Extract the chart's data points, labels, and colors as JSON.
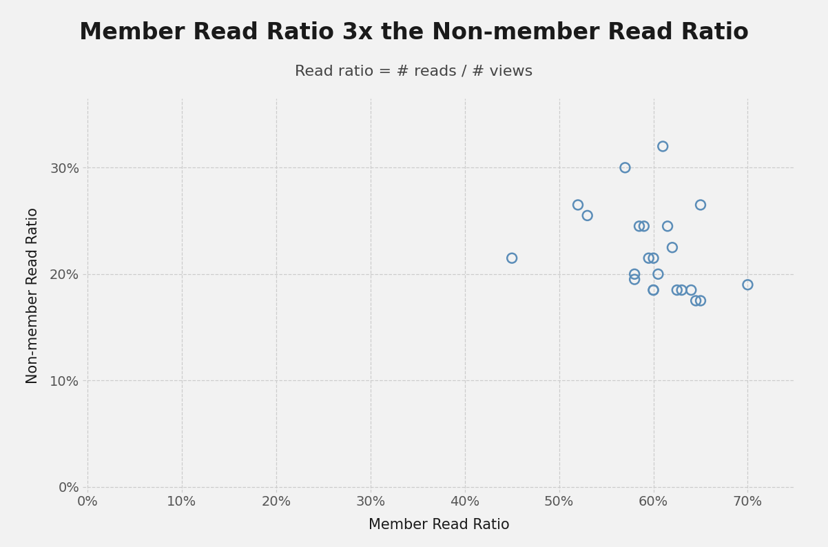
{
  "title": "Member Read Ratio 3x the Non-member Read Ratio",
  "subtitle": "Read ratio = # reads / # views",
  "xlabel": "Member Read Ratio",
  "ylabel": "Non-member Read Ratio",
  "x_data": [
    0.45,
    0.52,
    0.53,
    0.57,
    0.58,
    0.58,
    0.585,
    0.59,
    0.595,
    0.6,
    0.6,
    0.6,
    0.605,
    0.61,
    0.615,
    0.62,
    0.625,
    0.63,
    0.64,
    0.645,
    0.65,
    0.65,
    0.7
  ],
  "y_data": [
    0.215,
    0.265,
    0.255,
    0.3,
    0.195,
    0.2,
    0.245,
    0.245,
    0.215,
    0.185,
    0.185,
    0.215,
    0.2,
    0.32,
    0.245,
    0.225,
    0.185,
    0.185,
    0.185,
    0.175,
    0.265,
    0.175,
    0.19
  ],
  "xlim": [
    -0.005,
    0.75
  ],
  "ylim": [
    -0.005,
    0.365
  ],
  "xticks": [
    0.0,
    0.1,
    0.2,
    0.3,
    0.4,
    0.5,
    0.6,
    0.7
  ],
  "yticks": [
    0.0,
    0.1,
    0.2,
    0.3
  ],
  "marker_color": "#5b8db8",
  "marker_facecolor": "none",
  "marker_size": 100,
  "marker_linewidth": 1.8,
  "bg_color": "#f2f2f2",
  "plot_bg_color": "#f2f2f2",
  "grid_color": "#cccccc",
  "title_fontsize": 24,
  "subtitle_fontsize": 16,
  "axis_label_fontsize": 15,
  "tick_fontsize": 14
}
